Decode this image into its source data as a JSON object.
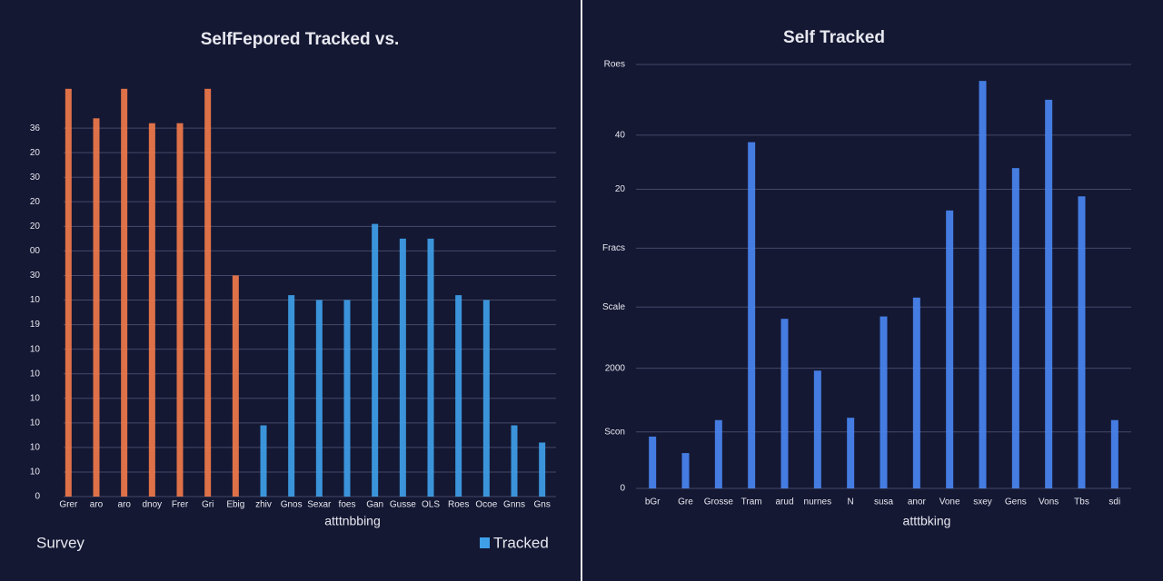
{
  "chart_data": [
    {
      "type": "bar",
      "title": "SelfFepored Tracked vs.",
      "x_label": "atttnbbing",
      "categories": [
        "Grer",
        "aro",
        "aro",
        "dnoy",
        "Frer",
        "Gri",
        "Ebig",
        "zhiv",
        "Gnos",
        "Sexar",
        "foes",
        "Gan",
        "Gusse",
        "OLS",
        "Roes",
        "Ocoe",
        "Gnns",
        "Gns"
      ],
      "series": [
        {
          "name": "Survey",
          "color": "#f07a4a",
          "values": [
            16.6,
            15.4,
            16.6,
            15.2,
            15.2,
            16.6,
            9.0,
            null,
            null,
            null,
            null,
            null,
            null,
            null,
            null,
            null,
            null,
            null
          ]
        },
        {
          "name": "Tracked",
          "color": "#3fa0e8",
          "values": [
            null,
            null,
            null,
            null,
            null,
            null,
            null,
            2.9,
            8.2,
            8.0,
            8.0,
            11.1,
            10.5,
            10.5,
            8.2,
            8.0,
            2.9,
            2.2
          ]
        }
      ],
      "ylim": [
        0,
        17
      ],
      "yticks": [
        0,
        {
          "value": 1,
          "label": "10"
        },
        {
          "value": 2,
          "label": "10"
        },
        {
          "value": 3,
          "label": "10"
        },
        {
          "value": 4,
          "label": "10"
        },
        {
          "value": 5,
          "label": "10"
        },
        {
          "value": 6,
          "label": "10"
        },
        {
          "value": 7,
          "label": "19"
        },
        {
          "value": 8,
          "label": "10"
        },
        {
          "value": 9,
          "label": "30"
        },
        {
          "value": 10,
          "label": "00"
        },
        {
          "value": 11,
          "label": "20"
        },
        {
          "value": 12,
          "label": "20"
        },
        {
          "value": 13,
          "label": "30"
        },
        {
          "value": 14,
          "label": "20"
        },
        {
          "value": 15,
          "label": "36"
        }
      ],
      "grid": true,
      "legend": "bottom"
    },
    {
      "type": "bar",
      "title": "Self Tracked",
      "x_label": "atttbking",
      "categories": [
        "bGr",
        "Gre",
        "Grosse",
        "Tram",
        "arud",
        "nurnes",
        "N",
        "susa",
        "anor",
        "Vone",
        "sxey",
        "Gens",
        "Vons",
        "Tbs",
        "sdi"
      ],
      "values": [
        2.2,
        1.5,
        2.9,
        14.7,
        7.2,
        5.0,
        3.0,
        7.3,
        8.1,
        11.8,
        17.3,
        13.6,
        16.5,
        12.4,
        2.9
      ],
      "color": "#4a86f0",
      "ylim": [
        0,
        18
      ],
      "yticks": [
        0,
        {
          "value": 2.4,
          "label": "Scon"
        },
        {
          "value": 5.1,
          "label": "2000"
        },
        {
          "value": 7.7,
          "label": "Scale"
        },
        {
          "value": 10.2,
          "label": "Fracs"
        },
        {
          "value": 12.7,
          "label": "20"
        },
        {
          "value": 15,
          "label": "40"
        },
        {
          "value": 18,
          "label": "Roes"
        }
      ],
      "grid": true
    }
  ]
}
